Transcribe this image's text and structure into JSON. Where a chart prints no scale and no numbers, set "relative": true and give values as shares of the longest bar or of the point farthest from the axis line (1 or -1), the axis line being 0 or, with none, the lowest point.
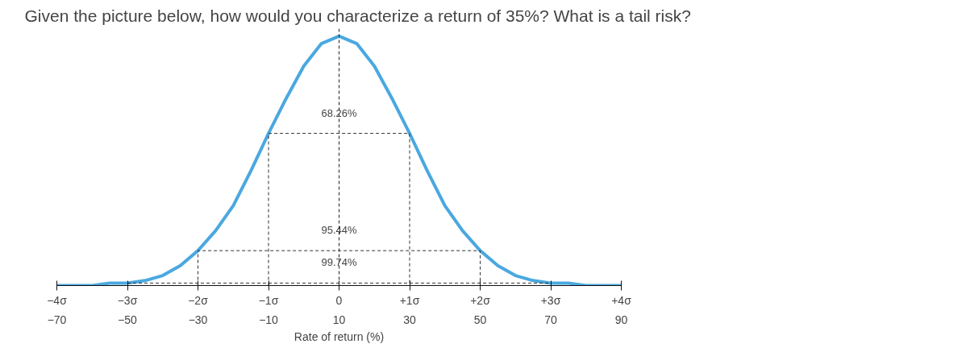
{
  "chart_data": {
    "type": "line",
    "title": "Given the picture below, how would you characterize a return of 35%? What is a tail risk?",
    "xlabel": "Rate of return (%)",
    "relative": true,
    "xlim": [
      -70,
      90
    ],
    "xticks": [
      {
        "value": -70,
        "label": "−70"
      },
      {
        "value": -50,
        "label": "−50"
      },
      {
        "value": -30,
        "label": "−30"
      },
      {
        "value": -10,
        "label": "−10"
      },
      10,
      30,
      50,
      70,
      90
    ],
    "x2lim": [
      -4,
      4
    ],
    "x2ticks": [
      {
        "value": -4,
        "label": "−4σ"
      },
      {
        "value": -3,
        "label": "−3σ"
      },
      {
        "value": -2,
        "label": "−2σ"
      },
      {
        "value": -1,
        "label": "−1σ"
      },
      0,
      {
        "value": 1,
        "label": "+1σ"
      },
      {
        "value": 2,
        "label": "+2σ"
      },
      {
        "value": 3,
        "label": "+3σ"
      },
      {
        "value": 4,
        "label": "+4σ"
      }
    ],
    "grid": false,
    "marker": "none",
    "series": [
      {
        "color": "#4aa8e0",
        "line_style": "solid",
        "x": [
          -70,
          -65,
          -60,
          -55,
          -50,
          -45,
          -40,
          -35,
          -30,
          -25,
          -20,
          -15,
          -10,
          -5,
          0,
          5,
          10,
          15,
          20,
          25,
          30,
          35,
          40,
          45,
          50,
          55,
          60,
          65,
          70,
          75,
          80,
          85,
          90
        ],
        "values": [
          0,
          0,
          0,
          0.01,
          0.01,
          0.02,
          0.04,
          0.08,
          0.14,
          0.22,
          0.32,
          0.46,
          0.61,
          0.75,
          0.88,
          0.97,
          1,
          0.97,
          0.88,
          0.75,
          0.61,
          0.46,
          0.32,
          0.22,
          0.14,
          0.08,
          0.04,
          0.02,
          0.01,
          0.01,
          0,
          0,
          0
        ]
      },
      {
        "color": "#333333",
        "line_style": "dashed",
        "x": [
          -10,
          -10,
          30,
          30
        ],
        "values": [
          0,
          0.61,
          0.61,
          0
        ]
      },
      {
        "color": "#333333",
        "line_style": "dashed",
        "x": [
          -30,
          -30,
          50,
          50
        ],
        "values": [
          0,
          0.14,
          0.14,
          0
        ]
      },
      {
        "color": "#333333",
        "line_style": "dashed",
        "x": [
          -50,
          70
        ],
        "values": [
          0.01,
          0.01
        ]
      }
    ],
    "ref_lines": [
      {
        "axis": "x",
        "value": 10,
        "color": "#222222",
        "line_style": "dashed"
      }
    ],
    "annotations": [
      "68.26%",
      "95.44%",
      "99.74%"
    ]
  }
}
